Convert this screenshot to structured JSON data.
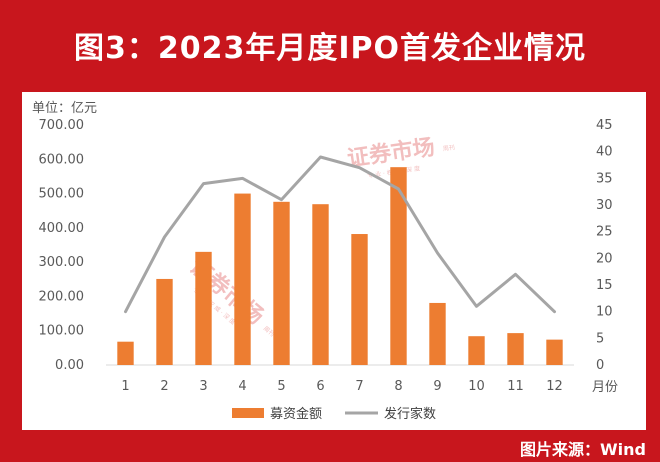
{
  "header": {
    "title": "图3：2023年月度IPO首发企业情况"
  },
  "footer": {
    "source": "图片来源：Wind"
  },
  "watermark": {
    "text": "证券市场",
    "sub": "周刊",
    "tagline": "专 业 · 权 威 · 深 度"
  },
  "colors": {
    "background": "#c8161d",
    "bars": "#ed7d31",
    "line": "#a5a5a5"
  },
  "chart_data": {
    "type": "bar",
    "unit_label": "单位：亿元",
    "x_unit_label": "月份",
    "categories": [
      "1",
      "2",
      "3",
      "4",
      "5",
      "6",
      "7",
      "8",
      "9",
      "10",
      "11",
      "12"
    ],
    "series": [
      {
        "name": "募资金额",
        "type": "bar",
        "axis": "left",
        "values": [
          68,
          251,
          330,
          500,
          476,
          469,
          382,
          577,
          181,
          84,
          93,
          74
        ]
      },
      {
        "name": "发行家数",
        "type": "line",
        "axis": "right",
        "values": [
          10,
          24,
          34,
          35,
          31,
          39,
          37,
          33,
          21,
          11,
          17,
          10
        ]
      }
    ],
    "ylim_left": [
      0,
      700
    ],
    "yticks_left": [
      "0.00",
      "100.00",
      "200.00",
      "300.00",
      "400.00",
      "500.00",
      "600.00",
      "700.00"
    ],
    "ylim_right": [
      0,
      45
    ],
    "yticks_right": [
      "0",
      "5",
      "10",
      "15",
      "20",
      "25",
      "30",
      "35",
      "40",
      "45"
    ],
    "grid": false,
    "legend_position": "bottom"
  }
}
